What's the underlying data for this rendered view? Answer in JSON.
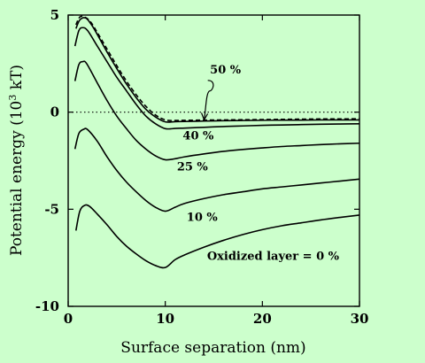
{
  "chart_data": {
    "type": "line",
    "xlabel": "Surface separation (nm)",
    "ylabel_main": "Potential energy (10",
    "ylabel_sup": "3",
    "ylabel_tail": " kT)",
    "xlim": [
      0,
      30
    ],
    "ylim": [
      -10,
      5
    ],
    "xticks": [
      0,
      10,
      20,
      30
    ],
    "yticks": [
      5,
      0,
      -5,
      -10
    ],
    "xtick_labels": [
      "0",
      "10",
      "20",
      "30"
    ],
    "ytick_labels": [
      "5",
      "0",
      "-5",
      "-10"
    ],
    "grid": false,
    "reference_line": {
      "y": 0,
      "style": "dotted"
    },
    "series": [
      {
        "name": "Oxidized layer = 0 %",
        "style": "solid",
        "x": [
          0.8,
          1.2,
          1.7,
          2.2,
          3,
          4,
          5,
          6,
          7,
          8,
          9,
          10,
          11,
          12,
          14,
          16,
          18,
          20,
          22,
          24,
          26,
          28,
          30
        ],
        "y": [
          -6.1,
          -5.1,
          -4.8,
          -4.85,
          -5.25,
          -5.8,
          -6.4,
          -6.9,
          -7.3,
          -7.65,
          -7.9,
          -8.0,
          -7.6,
          -7.35,
          -6.95,
          -6.6,
          -6.3,
          -6.05,
          -5.85,
          -5.7,
          -5.55,
          -5.42,
          -5.3
        ]
      },
      {
        "name": "10 %",
        "style": "solid",
        "x": [
          0.7,
          1.1,
          1.6,
          2.0,
          3,
          4,
          5,
          6,
          7,
          8,
          9,
          10,
          11,
          12,
          14,
          16,
          18,
          20,
          22,
          24,
          26,
          28,
          30
        ],
        "y": [
          -1.9,
          -1.1,
          -0.88,
          -0.9,
          -1.5,
          -2.3,
          -3.0,
          -3.6,
          -4.1,
          -4.55,
          -4.9,
          -5.1,
          -4.9,
          -4.7,
          -4.45,
          -4.25,
          -4.1,
          -3.95,
          -3.85,
          -3.75,
          -3.65,
          -3.55,
          -3.45
        ]
      },
      {
        "name": "25 %",
        "style": "solid",
        "x": [
          0.7,
          1.1,
          1.5,
          1.9,
          3,
          4,
          5,
          6,
          7,
          8,
          9,
          10,
          11,
          12,
          14,
          16,
          18,
          20,
          22,
          24,
          26,
          28,
          30
        ],
        "y": [
          1.6,
          2.45,
          2.6,
          2.5,
          1.5,
          0.6,
          -0.2,
          -0.85,
          -1.45,
          -1.9,
          -2.25,
          -2.45,
          -2.4,
          -2.3,
          -2.15,
          -2.02,
          -1.92,
          -1.84,
          -1.77,
          -1.72,
          -1.67,
          -1.63,
          -1.6
        ]
      },
      {
        "name": "40 %",
        "style": "solid",
        "x": [
          0.7,
          1.1,
          1.5,
          2,
          3,
          4,
          5,
          6,
          7,
          8,
          9,
          10,
          11,
          12,
          14,
          16,
          18,
          20,
          22,
          24,
          26,
          28,
          30
        ],
        "y": [
          3.4,
          4.2,
          4.35,
          4.2,
          3.4,
          2.6,
          1.8,
          1.1,
          0.4,
          -0.2,
          -0.6,
          -0.85,
          -0.84,
          -0.82,
          -0.78,
          -0.74,
          -0.71,
          -0.68,
          -0.66,
          -0.64,
          -0.62,
          -0.61,
          -0.6
        ]
      },
      {
        "name": "50 %",
        "style": "dashed",
        "x": [
          0.8,
          1.2,
          1.7,
          2.3,
          3,
          4,
          5,
          6,
          7,
          8,
          9,
          10,
          11,
          12,
          14,
          16,
          18,
          20,
          22,
          24,
          26,
          28,
          30
        ],
        "y": [
          4.5,
          4.9,
          4.9,
          4.65,
          4.1,
          3.25,
          2.4,
          1.6,
          0.9,
          0.3,
          -0.15,
          -0.4,
          -0.43,
          -0.42,
          -0.41,
          -0.4,
          -0.39,
          -0.38,
          -0.37,
          -0.36,
          -0.35,
          -0.35,
          -0.34
        ]
      },
      {
        "name": "",
        "style": "solid",
        "x": [
          0.8,
          1.2,
          1.8,
          2.4,
          3,
          4,
          5,
          6,
          7,
          8,
          9,
          10,
          11,
          12,
          14,
          16,
          18,
          20,
          22,
          24,
          26,
          28,
          30
        ],
        "y": [
          4.3,
          4.75,
          4.85,
          4.5,
          4.0,
          3.1,
          2.25,
          1.45,
          0.75,
          0.15,
          -0.25,
          -0.5,
          -0.49,
          -0.48,
          -0.46,
          -0.44,
          -0.43,
          -0.42,
          -0.41,
          -0.41,
          -0.4,
          -0.4,
          -0.4
        ]
      }
    ],
    "labels": [
      {
        "text": "50 %",
        "for": "50 %"
      },
      {
        "text": "40 %",
        "for": "40 %"
      },
      {
        "text": "25 %",
        "for": "25 %"
      },
      {
        "text": "10 %",
        "for": "10 %"
      },
      {
        "text": "Oxidized layer = 0 %",
        "for": "Oxidized layer = 0 %"
      }
    ]
  }
}
